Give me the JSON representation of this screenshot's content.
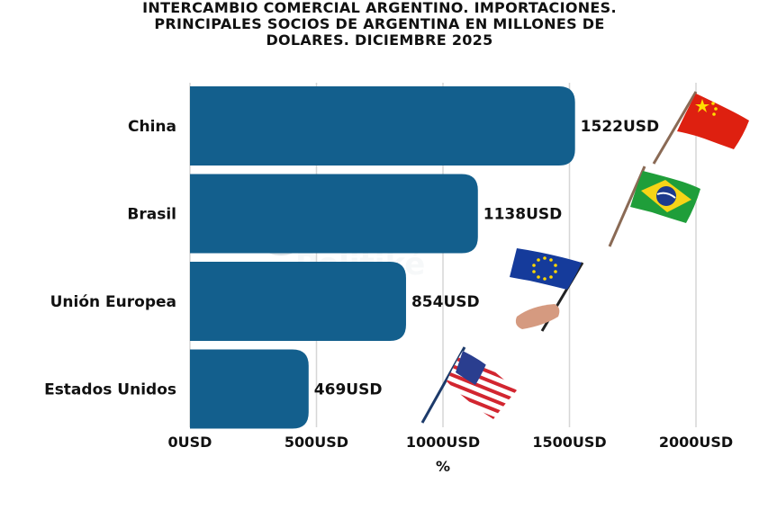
{
  "title_lines": [
    "INTERCAMBIO COMERCIAL ARGENTINO. IMPORTACIONES.",
    "PRINCIPALES SOCIOS DE ARGENTINA EN MILLONES DE",
    "DOLARES. DICIEMBRE 2025"
  ],
  "watermark": "Politiké",
  "colors": {
    "bar": "#135f8d",
    "grid": "#d6d6d6",
    "text": "#111111"
  },
  "chart_data": {
    "type": "bar",
    "orientation": "horizontal",
    "title": "INTERCAMBIO COMERCIAL ARGENTINO. IMPORTACIONES. PRINCIPALES SOCIOS DE ARGENTINA EN MILLONES DE DOLARES. DICIEMBRE 2025",
    "categories": [
      "China",
      "Brasil",
      "Unión Europea",
      "Estados Unidos"
    ],
    "values": [
      1522,
      1138,
      854,
      469
    ],
    "data_labels": [
      "1522USD",
      "1138USD",
      "854USD",
      "469USD"
    ],
    "xlabel": "%",
    "ylabel": "",
    "xlim": [
      0,
      2000
    ],
    "xticks": [
      0,
      500,
      1000,
      1500,
      2000
    ],
    "xtick_labels": [
      "0USD",
      "500USD",
      "1000USD",
      "1500USD",
      "2000USD"
    ],
    "grid": true,
    "flags": [
      "china-flag-icon",
      "brazil-flag-icon",
      "eu-flag-icon",
      "usa-flag-icon"
    ]
  }
}
